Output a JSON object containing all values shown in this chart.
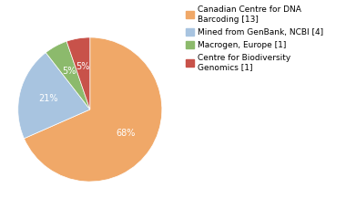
{
  "labels": [
    "Canadian Centre for DNA\nBarcoding [13]",
    "Mined from GenBank, NCBI [4]",
    "Macrogen, Europe [1]",
    "Centre for Biodiversity\nGenomics [1]"
  ],
  "values": [
    13,
    4,
    1,
    1
  ],
  "colors": [
    "#f0a868",
    "#a8c4e0",
    "#8cba6c",
    "#c8524a"
  ],
  "autopct_labels": [
    "68%",
    "21%",
    "5%",
    "5%"
  ],
  "startangle": 90,
  "background_color": "#ffffff"
}
